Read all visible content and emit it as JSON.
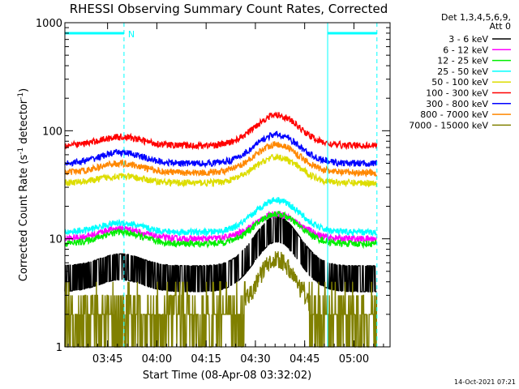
{
  "chart_data": {
    "type": "line",
    "title": "RHESSI Observing Summary Count Rates, Corrected",
    "xlabel": "Start Time (08-Apr-08 03:32:02)",
    "ylabel_main": "Corrected Count Rate (s",
    "ylabel_sup1": "-1",
    "ylabel_mid": " detector",
    "ylabel_sup2": "-1",
    "ylabel_end": ")",
    "timestamp": "14-Oct-2021 07:21",
    "y_scale": "log",
    "ylim": [
      1,
      1000
    ],
    "xlim_minutes_from_start": [
      0,
      99
    ],
    "x_ticks": [
      {
        "label": "03:45",
        "min": 13
      },
      {
        "label": "04:00",
        "min": 28
      },
      {
        "label": "04:15",
        "min": 43
      },
      {
        "label": "04:30",
        "min": 58
      },
      {
        "label": "04:45",
        "min": 73
      },
      {
        "label": "05:00",
        "min": 88
      }
    ],
    "y_ticks": [
      {
        "label": "1",
        "value": 1
      },
      {
        "label": "10",
        "value": 10
      },
      {
        "label": "100",
        "value": 100
      },
      {
        "label": "1000",
        "value": 1000
      }
    ],
    "night_lines_min": [
      0,
      18,
      80,
      95
    ],
    "night_dashed_min": [
      18,
      95
    ],
    "saa_label": "N",
    "legend_header": [
      "Det 1,3,4,5,6,9,",
      "Att 0"
    ],
    "legend_position": "right",
    "series": [
      {
        "name": "3 - 6 keV",
        "color": "#000000",
        "base": 4.5,
        "peak": 13,
        "hump1": 5.8
      },
      {
        "name": "6 - 12 keV",
        "color": "#ff00ff",
        "base": 10.0,
        "peak": 17,
        "hump1": 12.5
      },
      {
        "name": "12 - 25 keV",
        "color": "#00ee00",
        "base": 9.0,
        "peak": 17,
        "hump1": 11.5
      },
      {
        "name": "25 - 50 keV",
        "color": "#00ffff",
        "base": 11.5,
        "peak": 23,
        "hump1": 14
      },
      {
        "name": "50 - 100 keV",
        "color": "#dddd00",
        "base": 33,
        "peak": 57,
        "hump1": 38
      },
      {
        "name": "100 - 300 keV",
        "color": "#ff0000",
        "base": 73,
        "peak": 140,
        "hump1": 88
      },
      {
        "name": "300 - 800 keV",
        "color": "#0000ff",
        "base": 50,
        "peak": 92,
        "hump1": 63
      },
      {
        "name": "800 - 7000 keV",
        "color": "#ff8800",
        "base": 41,
        "peak": 75,
        "hump1": 50
      },
      {
        "name": "7000 - 15000 keV",
        "color": "#808000",
        "base": 1.6,
        "peak": 6.5,
        "hump1": 2.2
      }
    ]
  }
}
